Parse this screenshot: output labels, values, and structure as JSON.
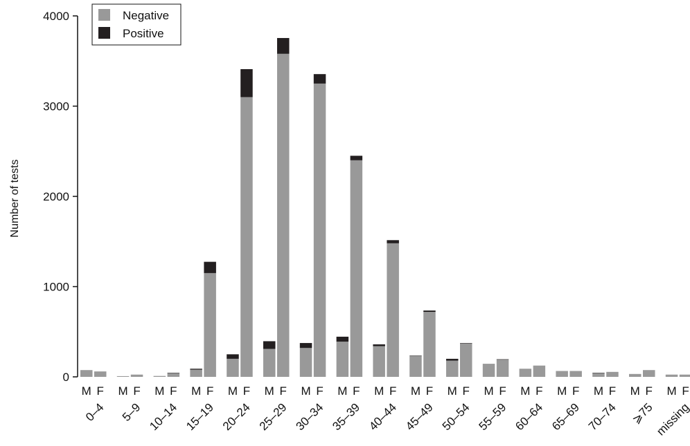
{
  "chart_data": {
    "type": "bar",
    "stacked": true,
    "ylabel": "Number of tests",
    "xlabel": "",
    "ylim": [
      0,
      4000
    ],
    "yticks": [
      0,
      1000,
      2000,
      3000,
      4000
    ],
    "categories": [
      "0–4",
      "5–9",
      "10–14",
      "15–19",
      "20–24",
      "25–29",
      "30–34",
      "35–39",
      "40–44",
      "45–49",
      "50–54",
      "55–59",
      "60–64",
      "65–69",
      "70–74",
      "⩾75",
      "missing"
    ],
    "sexes": [
      "M",
      "F"
    ],
    "legend": {
      "position": "top-left",
      "entries": [
        "Negative",
        "Positive"
      ]
    },
    "colors": {
      "Negative": "#999999",
      "Positive": "#231f20"
    },
    "series": [
      {
        "name": "Negative",
        "values": {
          "M": [
            75,
            8,
            10,
            80,
            200,
            310,
            320,
            390,
            340,
            230,
            180,
            145,
            90,
            65,
            40,
            32,
            25
          ],
          "F": [
            60,
            25,
            40,
            1150,
            3100,
            3580,
            3250,
            2400,
            1480,
            720,
            370,
            190,
            125,
            65,
            55,
            75,
            25
          ]
        }
      },
      {
        "name": "Positive",
        "values": {
          "M": [
            0,
            0,
            0,
            10,
            50,
            85,
            55,
            55,
            20,
            5,
            20,
            0,
            0,
            0,
            5,
            0,
            0
          ],
          "F": [
            0,
            0,
            5,
            125,
            310,
            175,
            105,
            50,
            35,
            15,
            5,
            5,
            0,
            0,
            0,
            0,
            0
          ]
        }
      }
    ]
  }
}
